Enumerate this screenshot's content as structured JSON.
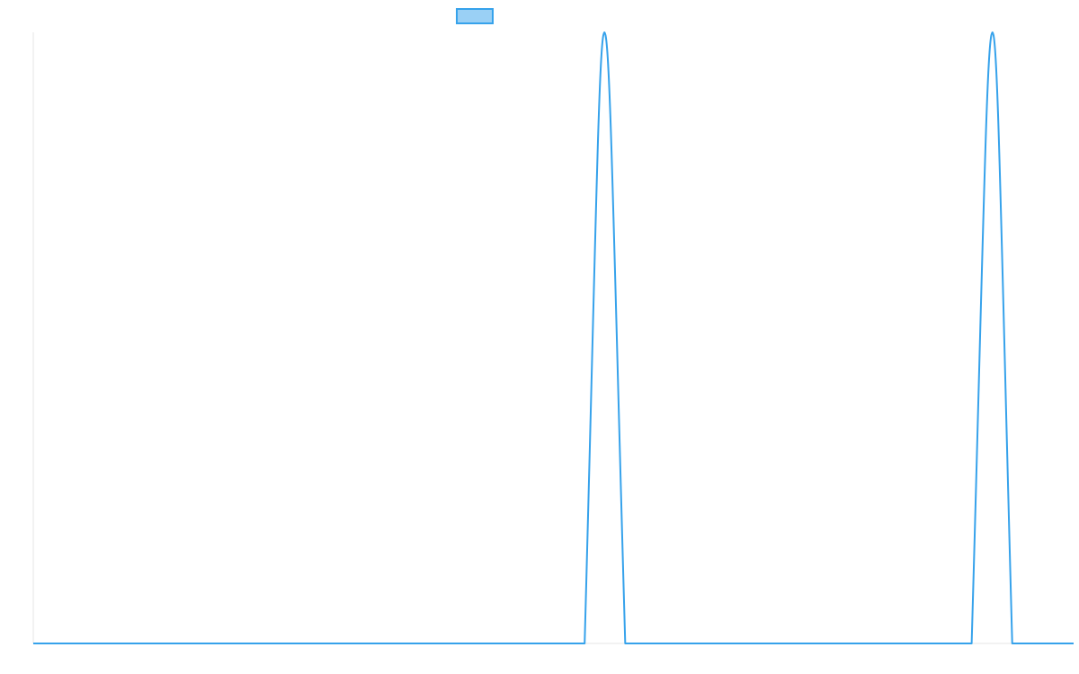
{
  "chart_data": {
    "type": "line",
    "title": "",
    "xlabel": "",
    "ylabel": "",
    "grid": false,
    "legend": {
      "placement": "top-center",
      "entries": [
        {
          "name": "",
          "color": "#36a2eb",
          "fill": "#9ad0f5"
        }
      ]
    },
    "x_range": [
      0,
      100
    ],
    "ylim": [
      0,
      1
    ],
    "series": [
      {
        "name": "",
        "color": "#36a2eb",
        "x": [
          0,
          53.0,
          54.9,
          56.9,
          90.2,
          92.2,
          94.1,
          100
        ],
        "y": [
          0,
          0,
          1,
          0,
          0,
          1,
          0,
          0
        ]
      }
    ]
  }
}
